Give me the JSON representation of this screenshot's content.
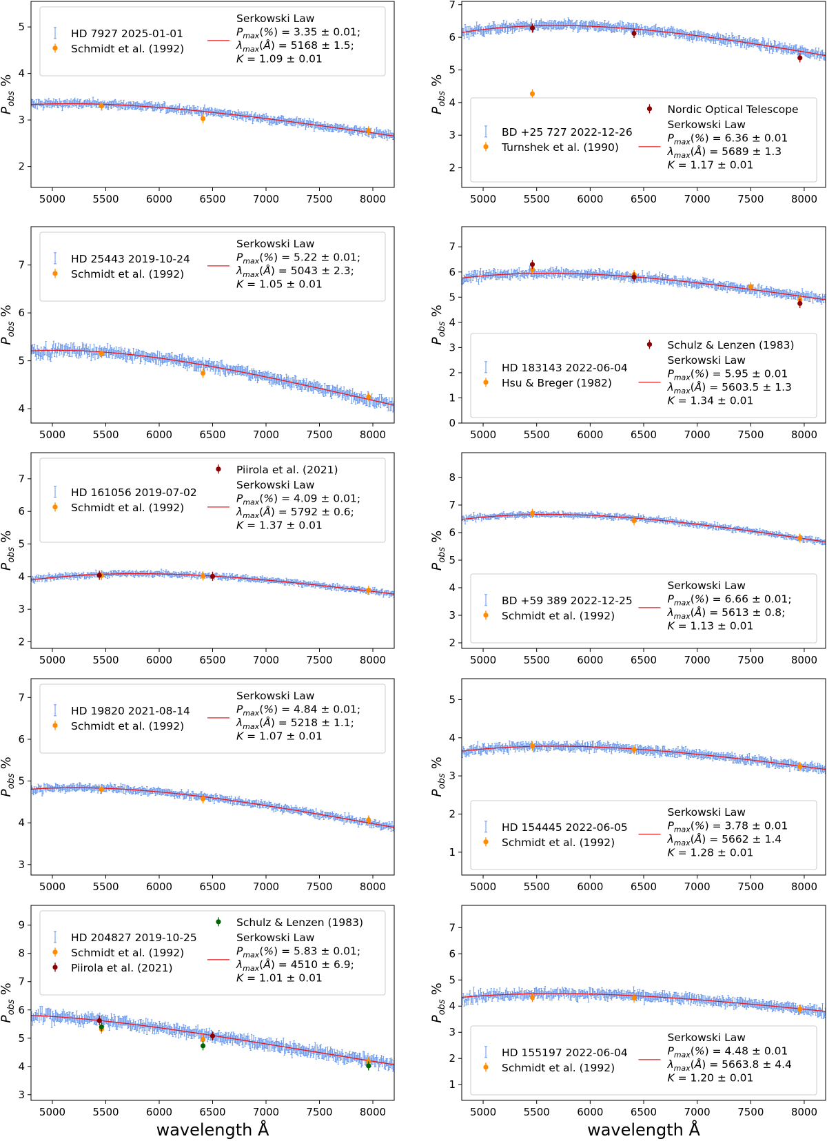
{
  "figure": {
    "xlabel": "wavelength Å",
    "ylabel_main": "P",
    "ylabel_sub": "obs",
    "ylabel_suffix": " %"
  },
  "colors": {
    "observed": "#6495ED",
    "serkowski": "#e8181c",
    "orange": "#ff8c00",
    "darkred": "#8b0000",
    "green": "#006400"
  },
  "chart_data": [
    {
      "type": "scatter",
      "target": "HD 7927 2025-01-01",
      "xlim": [
        4800,
        8200
      ],
      "ylim": [
        1.55,
        5.55
      ],
      "xticks": [
        5000,
        5500,
        6000,
        6500,
        7000,
        7500,
        8000
      ],
      "yticks": [
        2,
        3,
        4,
        5
      ],
      "legend_loc": "top",
      "legend": [
        {
          "kind": "obs",
          "label": "HD 7927 2025-01-01"
        },
        {
          "kind": "ref",
          "label": "Schmidt et al. (1992)",
          "color": "orange"
        },
        {
          "kind": "fit",
          "label": "Serkowski Law",
          "lines": [
            "P_max(%) = 3.35 ± 0.01;",
            "λ_max(Å) = 5168 ± 1.5;",
            "K = 1.09 ± 0.01"
          ]
        }
      ],
      "serkowski": {
        "pmax": 3.35,
        "lmax": 5168,
        "K": 1.09
      },
      "noise": 0.06,
      "references": [
        {
          "name": "Schmidt et al. (1992)",
          "color": "orange",
          "x": [
            5460,
            6410,
            7960
          ],
          "y": [
            3.3,
            3.03,
            2.77
          ]
        }
      ]
    },
    {
      "type": "scatter",
      "target": "BD +25 727 2022-12-26",
      "xlim": [
        4800,
        8200
      ],
      "ylim": [
        1.4,
        7.1
      ],
      "xticks": [
        5000,
        5500,
        6000,
        6500,
        7000,
        7500,
        8000
      ],
      "yticks": [
        2,
        3,
        4,
        5,
        6,
        7
      ],
      "legend_loc": "bottom",
      "legend": [
        {
          "kind": "obs",
          "label": "BD +25 727 2022-12-26"
        },
        {
          "kind": "ref",
          "label": "Turnshek et al. (1990)",
          "color": "orange"
        },
        {
          "kind": "ref",
          "label": "Nordic Optical Telescope",
          "color": "darkred"
        },
        {
          "kind": "fit",
          "label": "Serkowski Law",
          "lines": [
            "P_max(%) = 6.36 ± 0.01",
            "λ_max(Å) = 5689 ± 1.3",
            "K = 1.17 ± 0.01"
          ]
        }
      ],
      "serkowski": {
        "pmax": 6.36,
        "lmax": 5689,
        "K": 1.17
      },
      "noise": 0.1,
      "references": [
        {
          "name": "Turnshek et al. (1990)",
          "color": "orange",
          "x": [
            5460
          ],
          "y": [
            4.27
          ]
        },
        {
          "name": "Nordic Optical Telescope",
          "color": "darkred",
          "x": [
            5460,
            6410,
            7960
          ],
          "y": [
            6.28,
            6.12,
            5.37
          ]
        }
      ]
    },
    {
      "type": "scatter",
      "target": "HD 25443 2019-10-24",
      "xlim": [
        4800,
        8200
      ],
      "ylim": [
        3.7,
        7.8
      ],
      "xticks": [
        5000,
        5500,
        6000,
        6500,
        7000,
        7500,
        8000
      ],
      "yticks": [
        4,
        5,
        6,
        7
      ],
      "legend_loc": "top",
      "legend": [
        {
          "kind": "obs",
          "label": "HD 25443 2019-10-24"
        },
        {
          "kind": "ref",
          "label": "Schmidt et al. (1992)",
          "color": "orange"
        },
        {
          "kind": "fit",
          "label": "Serkowski Law",
          "lines": [
            "P_max(%) = 5.22 ± 0.01;",
            "λ_max(Å) = 5043 ± 2.3;",
            "K = 1.05 ± 0.01"
          ]
        }
      ],
      "serkowski": {
        "pmax": 5.22,
        "lmax": 5043,
        "K": 1.05
      },
      "noise": 0.08,
      "references": [
        {
          "name": "Schmidt et al. (1992)",
          "color": "orange",
          "x": [
            5460,
            6410,
            7960
          ],
          "y": [
            5.15,
            4.74,
            4.25
          ]
        }
      ]
    },
    {
      "type": "scatter",
      "target": "HD 183143 2022-06-04",
      "xlim": [
        4800,
        8200
      ],
      "ylim": [
        0,
        7.8
      ],
      "xticks": [
        5000,
        5500,
        6000,
        6500,
        7000,
        7500,
        8000
      ],
      "yticks": [
        0,
        1,
        2,
        3,
        4,
        5,
        6,
        7
      ],
      "legend_loc": "bottom",
      "legend": [
        {
          "kind": "obs",
          "label": "HD 183143 2022-06-04"
        },
        {
          "kind": "ref",
          "label": "Hsu & Breger (1982)",
          "color": "orange"
        },
        {
          "kind": "ref",
          "label": "Schulz & Lenzen (1983)",
          "color": "darkred"
        },
        {
          "kind": "fit",
          "label": "Serkowski Law",
          "lines": [
            "P_max(%) = 5.95 ± 0.01",
            "λ_max(Å) = 5603.5 ± 1.3",
            "K = 1.34 ± 0.01"
          ]
        }
      ],
      "serkowski": {
        "pmax": 5.95,
        "lmax": 5603.5,
        "K": 1.34
      },
      "noise": 0.12,
      "references": [
        {
          "name": "Hsu & Breger (1982)",
          "color": "orange",
          "x": [
            5460,
            6410,
            7500,
            7960
          ],
          "y": [
            6.1,
            5.9,
            5.42,
            4.9
          ]
        },
        {
          "name": "Schulz & Lenzen (1983)",
          "color": "darkred",
          "x": [
            5460,
            6410,
            7960
          ],
          "y": [
            6.3,
            5.8,
            4.75
          ]
        }
      ]
    },
    {
      "type": "scatter",
      "target": "HD 161056 2019-07-02",
      "xlim": [
        4800,
        8200
      ],
      "ylim": [
        1.8,
        7.8
      ],
      "xticks": [
        5000,
        5500,
        6000,
        6500,
        7000,
        7500,
        8000
      ],
      "yticks": [
        2,
        3,
        4,
        5,
        6,
        7
      ],
      "legend_loc": "top",
      "legend": [
        {
          "kind": "obs",
          "label": "HD 161056 2019-07-02"
        },
        {
          "kind": "ref",
          "label": "Schmidt et al. (1992)",
          "color": "orange"
        },
        {
          "kind": "ref",
          "label": "Piirola et al. (2021)",
          "color": "darkred"
        },
        {
          "kind": "fit",
          "label": "Serkowski Law",
          "lines": [
            "P_max(%) = 4.09 ± 0.01;",
            "λ_max(Å) = 5792 ± 0.6;",
            "K = 1.37 ± 0.01"
          ]
        }
      ],
      "serkowski": {
        "pmax": 4.09,
        "lmax": 5792,
        "K": 1.37
      },
      "noise": 0.06,
      "references": [
        {
          "name": "Schmidt et al. (1992)",
          "color": "orange",
          "x": [
            5460,
            6410,
            7960
          ],
          "y": [
            4.03,
            4.02,
            3.58
          ]
        },
        {
          "name": "Piirola et al. (2021)",
          "color": "darkred",
          "x": [
            5440,
            6500
          ],
          "y": [
            4.04,
            4.01
          ]
        }
      ]
    },
    {
      "type": "scatter",
      "target": "BD +59 389 2022-12-25",
      "xlim": [
        4800,
        8200
      ],
      "ylim": [
        1.8,
        8.9
      ],
      "xticks": [
        5000,
        5500,
        6000,
        6500,
        7000,
        7500,
        8000
      ],
      "yticks": [
        2,
        3,
        4,
        5,
        6,
        7,
        8
      ],
      "legend_loc": "bottom",
      "legend": [
        {
          "kind": "obs",
          "label": "BD +59 389 2022-12-25"
        },
        {
          "kind": "ref",
          "label": "Schmidt et al. (1992)",
          "color": "orange"
        },
        {
          "kind": "fit",
          "label": "Serkowski Law",
          "lines": [
            "P_max(%) = 6.66 ± 0.01;",
            "λ_max(Å) = 5613 ± 0.8;",
            "K = 1.13 ± 0.01"
          ]
        }
      ],
      "serkowski": {
        "pmax": 6.66,
        "lmax": 5613,
        "K": 1.13
      },
      "noise": 0.07,
      "references": [
        {
          "name": "Schmidt et al. (1992)",
          "color": "orange",
          "x": [
            5460,
            6410,
            7960
          ],
          "y": [
            6.7,
            6.43,
            5.8
          ]
        }
      ]
    },
    {
      "type": "scatter",
      "target": "HD 19820 2021-08-14",
      "xlim": [
        4800,
        8200
      ],
      "ylim": [
        2.75,
        7.45
      ],
      "xticks": [
        5000,
        5500,
        6000,
        6500,
        7000,
        7500,
        8000
      ],
      "yticks": [
        3,
        4,
        5,
        6,
        7
      ],
      "legend_loc": "top",
      "legend": [
        {
          "kind": "obs",
          "label": "HD 19820 2021-08-14"
        },
        {
          "kind": "ref",
          "label": "Schmidt et al. (1992)",
          "color": "orange"
        },
        {
          "kind": "fit",
          "label": "Serkowski Law",
          "lines": [
            "P_max(%) = 4.84 ± 0.01;",
            "λ_max(Å) = 5218 ± 1.1;",
            "K = 1.07 ± 0.01"
          ]
        }
      ],
      "serkowski": {
        "pmax": 4.84,
        "lmax": 5218,
        "K": 1.07
      },
      "noise": 0.06,
      "references": [
        {
          "name": "Schmidt et al. (1992)",
          "color": "orange",
          "x": [
            5460,
            6410,
            7960
          ],
          "y": [
            4.8,
            4.57,
            4.07
          ]
        }
      ]
    },
    {
      "type": "scatter",
      "target": "HD 154445 2022-06-05",
      "xlim": [
        4800,
        8200
      ],
      "ylim": [
        0.4,
        5.55
      ],
      "xticks": [
        5000,
        5500,
        6000,
        6500,
        7000,
        7500,
        8000
      ],
      "yticks": [
        1,
        2,
        3,
        4,
        5
      ],
      "legend_loc": "bottom",
      "legend": [
        {
          "kind": "obs",
          "label": "HD 154445 2022-06-05"
        },
        {
          "kind": "ref",
          "label": "Schmidt et al. (1992)",
          "color": "orange"
        },
        {
          "kind": "fit",
          "label": "Serkowski Law",
          "lines": [
            "P_max(%) = 3.78 ± 0.01",
            "λ_max(Å) = 5662 ± 1.4",
            "K = 1.28 ± 0.01"
          ]
        }
      ],
      "serkowski": {
        "pmax": 3.78,
        "lmax": 5662,
        "K": 1.28
      },
      "noise": 0.08,
      "references": [
        {
          "name": "Schmidt et al. (1992)",
          "color": "orange",
          "x": [
            5460,
            6410,
            7960
          ],
          "y": [
            3.78,
            3.69,
            3.25
          ]
        }
      ]
    },
    {
      "type": "scatter",
      "target": "HD 204827 2019-10-25",
      "xlim": [
        4800,
        8200
      ],
      "ylim": [
        2.8,
        9.7
      ],
      "xticks": [
        5000,
        5500,
        6000,
        6500,
        7000,
        7500,
        8000
      ],
      "yticks": [
        3,
        4,
        5,
        6,
        7,
        8,
        9
      ],
      "legend_loc": "top",
      "legend": [
        {
          "kind": "obs",
          "label": "HD 204827 2019-10-25"
        },
        {
          "kind": "ref",
          "label": "Schmidt et al. (1992)",
          "color": "orange"
        },
        {
          "kind": "ref",
          "label": "Piirola et al. (2021)",
          "color": "darkred"
        },
        {
          "kind": "ref",
          "label": "Schulz & Lenzen (1983)",
          "color": "green"
        },
        {
          "kind": "fit",
          "label": "Serkowski Law",
          "lines": [
            "P_max(%) = 5.83 ± 0.01;",
            "λ_max(Å) = 4510 ± 6.9;",
            "K = 1.01 ± 0.01"
          ]
        }
      ],
      "serkowski": {
        "pmax": 5.83,
        "lmax": 4510,
        "K": 1.01
      },
      "noise": 0.14,
      "references": [
        {
          "name": "Schmidt et al. (1992)",
          "color": "orange",
          "x": [
            5460,
            6410,
            7960
          ],
          "y": [
            5.32,
            4.95,
            4.18
          ]
        },
        {
          "name": "Piirola et al. (2021)",
          "color": "darkred",
          "x": [
            5440,
            6500
          ],
          "y": [
            5.62,
            5.08
          ]
        },
        {
          "name": "Schulz & Lenzen (1983)",
          "color": "green",
          "x": [
            5460,
            6410,
            7960
          ],
          "y": [
            5.4,
            4.73,
            4.02
          ]
        }
      ]
    },
    {
      "type": "scatter",
      "target": "HD 155197 2022-06-04",
      "xlim": [
        4800,
        8200
      ],
      "ylim": [
        0.4,
        7.85
      ],
      "xticks": [
        5000,
        5500,
        6000,
        6500,
        7000,
        7500,
        8000
      ],
      "yticks": [
        1,
        2,
        3,
        4,
        5,
        6,
        7
      ],
      "legend_loc": "bottom",
      "legend": [
        {
          "kind": "obs",
          "label": "HD 155197 2022-06-04"
        },
        {
          "kind": "ref",
          "label": "Schmidt et al. (1992)",
          "color": "orange"
        },
        {
          "kind": "fit",
          "label": "Serkowski Law",
          "lines": [
            "P_max(%) = 4.48 ± 0.01",
            "λ_max(Å) = 5663.8 ± 4.4",
            "K = 1.20 ± 0.01"
          ]
        }
      ],
      "serkowski": {
        "pmax": 4.48,
        "lmax": 5663.8,
        "K": 1.2
      },
      "noise": 0.13,
      "references": [
        {
          "name": "Schmidt et al. (1992)",
          "color": "orange",
          "x": [
            5460,
            6410,
            7960
          ],
          "y": [
            4.33,
            4.31,
            3.88
          ]
        }
      ]
    }
  ]
}
